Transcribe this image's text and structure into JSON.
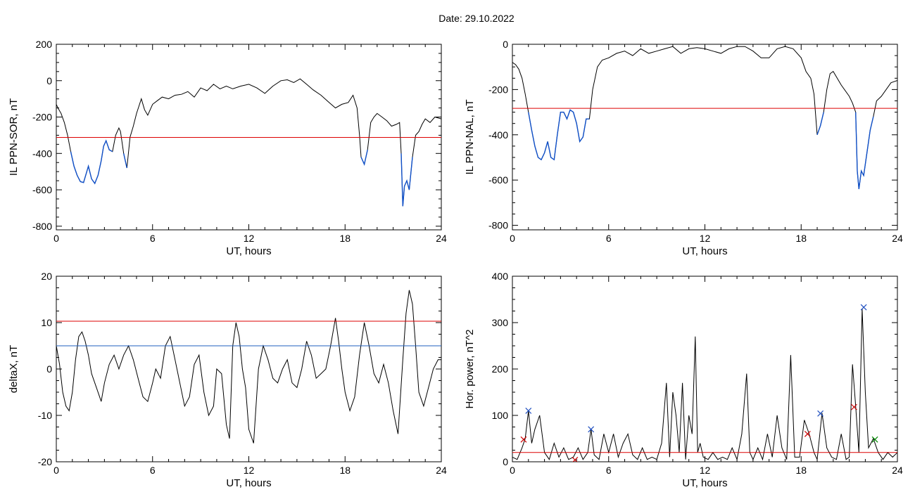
{
  "header": {
    "date_text": "Date:  29.10.2022"
  },
  "colors": {
    "trace": "#000000",
    "threshold_red": "#dd0000",
    "threshold_blue": "#1f5fbf",
    "dip_blue": "#1050c8",
    "marker_red": "#cc0000",
    "marker_blue": "#1f4fbf",
    "marker_green": "#008800"
  },
  "chart_data": [
    {
      "id": "ppn-sor",
      "type": "line",
      "title": "",
      "xlabel": "UT, hours",
      "ylabel": "IL PPN-SOR, nT",
      "xlim": [
        0,
        24
      ],
      "ylim": [
        -820,
        200
      ],
      "xticks": [
        0,
        6,
        12,
        18,
        24
      ],
      "yticks": [
        -800,
        -600,
        -400,
        -200,
        0,
        200
      ],
      "threshold": {
        "y": -312,
        "color": "red"
      },
      "highlight_below_threshold": true,
      "series": [
        {
          "x": [
            0,
            0.1,
            0.3,
            0.5,
            0.7,
            0.9,
            1.1,
            1.3,
            1.5,
            1.7,
            1.9,
            2.0,
            2.2,
            2.4,
            2.6,
            2.8,
            2.95,
            3.1,
            3.3,
            3.5,
            3.7,
            3.9,
            4.0,
            4.2,
            4.4,
            4.6,
            4.8,
            5.0,
            5.3,
            5.5,
            5.7,
            6.0,
            6.3,
            6.6,
            7.0,
            7.4,
            7.8,
            8.2,
            8.6,
            9.0,
            9.4,
            9.8,
            10.2,
            10.6,
            11.0,
            11.5,
            12.0,
            12.5,
            13.0,
            13.5,
            14.0,
            14.4,
            14.8,
            15.2,
            15.6,
            16.0,
            16.5,
            17.0,
            17.4,
            17.8,
            18.2,
            18.5,
            18.75,
            18.9,
            19.0,
            19.2,
            19.4,
            19.6,
            19.8,
            20.0,
            20.3,
            20.6,
            20.9,
            21.2,
            21.4,
            21.5,
            21.6,
            21.7,
            21.85,
            22.0,
            22.2,
            22.4,
            22.6,
            22.8,
            23.0,
            23.3,
            23.6,
            24.0
          ],
          "y": [
            -130,
            -150,
            -180,
            -230,
            -300,
            -390,
            -470,
            -520,
            -555,
            -560,
            -500,
            -470,
            -540,
            -565,
            -520,
            -440,
            -360,
            -330,
            -380,
            -390,
            -300,
            -260,
            -280,
            -400,
            -480,
            -310,
            -250,
            -180,
            -100,
            -160,
            -190,
            -130,
            -110,
            -90,
            -100,
            -80,
            -75,
            -60,
            -90,
            -40,
            -55,
            -20,
            -45,
            -30,
            -45,
            -30,
            -20,
            -40,
            -70,
            -30,
            0,
            5,
            -10,
            10,
            -20,
            -50,
            -80,
            -120,
            -150,
            -130,
            -120,
            -80,
            -150,
            -300,
            -420,
            -460,
            -380,
            -230,
            -200,
            -180,
            -200,
            -220,
            -250,
            -240,
            -230,
            -400,
            -690,
            -580,
            -550,
            -600,
            -420,
            -300,
            -280,
            -240,
            -210,
            -230,
            -200,
            -210
          ]
        }
      ]
    },
    {
      "id": "ppn-nal",
      "type": "line",
      "title": "",
      "xlabel": "UT, hours",
      "ylabel": "IL PPN-NAL, nT",
      "xlim": [
        0,
        24
      ],
      "ylim": [
        -820,
        0
      ],
      "xticks": [
        0,
        6,
        12,
        18,
        24
      ],
      "yticks": [
        -800,
        -600,
        -400,
        -200,
        0
      ],
      "threshold": {
        "y": -283,
        "color": "red"
      },
      "highlight_below_threshold": true,
      "series": [
        {
          "x": [
            0,
            0.2,
            0.4,
            0.6,
            0.8,
            1.0,
            1.2,
            1.4,
            1.6,
            1.8,
            2.0,
            2.2,
            2.4,
            2.6,
            2.8,
            3.0,
            3.2,
            3.4,
            3.6,
            3.8,
            4.0,
            4.2,
            4.4,
            4.6,
            4.8,
            5.0,
            5.3,
            5.6,
            6.0,
            6.5,
            7.0,
            7.5,
            8.0,
            8.5,
            9.0,
            9.5,
            10.0,
            10.5,
            11.0,
            11.5,
            12.0,
            12.5,
            13.0,
            13.5,
            14.0,
            14.5,
            15.0,
            15.5,
            16.0,
            16.5,
            17.0,
            17.5,
            18.0,
            18.3,
            18.6,
            18.8,
            19.0,
            19.2,
            19.4,
            19.6,
            19.8,
            20.0,
            20.5,
            21.0,
            21.2,
            21.4,
            21.5,
            21.6,
            21.75,
            21.9,
            22.1,
            22.3,
            22.5,
            22.7,
            23.0,
            23.3,
            23.6,
            24.0
          ],
          "y": [
            -80,
            -90,
            -110,
            -150,
            -220,
            -300,
            -380,
            -450,
            -500,
            -510,
            -480,
            -430,
            -500,
            -510,
            -400,
            -300,
            -300,
            -330,
            -290,
            -300,
            -350,
            -430,
            -410,
            -330,
            -330,
            -200,
            -100,
            -70,
            -60,
            -40,
            -30,
            -50,
            -20,
            -40,
            -30,
            -20,
            -10,
            -40,
            -20,
            -15,
            -20,
            -30,
            -40,
            -20,
            -10,
            -10,
            -30,
            -60,
            -60,
            -20,
            -10,
            -20,
            -60,
            -120,
            -150,
            -220,
            -400,
            -360,
            -300,
            -200,
            -130,
            -120,
            -180,
            -230,
            -260,
            -300,
            -560,
            -640,
            -560,
            -580,
            -480,
            -380,
            -320,
            -250,
            -230,
            -200,
            -170,
            -160
          ]
        }
      ]
    },
    {
      "id": "deltax",
      "type": "line",
      "title": "",
      "xlabel": "UT, hours",
      "ylabel": "deltaX, nT",
      "xlim": [
        0,
        24
      ],
      "ylim": [
        -20,
        20
      ],
      "xticks": [
        0,
        6,
        12,
        18,
        24
      ],
      "yticks": [
        -20,
        -10,
        0,
        10,
        20
      ],
      "thresholds": [
        {
          "y": 10.3,
          "color": "red"
        },
        {
          "y": 5.0,
          "color": "blue"
        }
      ],
      "series": [
        {
          "x": [
            0,
            0.2,
            0.4,
            0.6,
            0.8,
            1.0,
            1.2,
            1.4,
            1.6,
            1.8,
            2.0,
            2.2,
            2.5,
            2.8,
            3.0,
            3.3,
            3.6,
            3.9,
            4.2,
            4.5,
            4.8,
            5.1,
            5.4,
            5.7,
            6.0,
            6.2,
            6.5,
            6.8,
            7.1,
            7.4,
            7.7,
            8.0,
            8.3,
            8.6,
            8.9,
            9.2,
            9.5,
            9.8,
            10.0,
            10.3,
            10.6,
            10.8,
            11.0,
            11.2,
            11.4,
            11.6,
            11.8,
            12.0,
            12.3,
            12.6,
            12.9,
            13.2,
            13.5,
            13.8,
            14.1,
            14.4,
            14.7,
            15.0,
            15.3,
            15.6,
            15.9,
            16.2,
            16.5,
            16.8,
            17.1,
            17.4,
            17.6,
            17.8,
            18.0,
            18.3,
            18.6,
            18.9,
            19.2,
            19.5,
            19.8,
            20.1,
            20.4,
            20.7,
            21.0,
            21.3,
            21.6,
            21.8,
            22.0,
            22.2,
            22.4,
            22.6,
            22.9,
            23.2,
            23.5,
            23.8,
            24.0
          ],
          "y": [
            5,
            1,
            -5,
            -8,
            -9,
            -5,
            2,
            7,
            8,
            6,
            3,
            -1,
            -4,
            -7,
            -3,
            1,
            3,
            0,
            3,
            5,
            2,
            -2,
            -6,
            -7,
            -3,
            0,
            -2,
            5,
            7,
            2,
            -3,
            -8,
            -6,
            1,
            3,
            -5,
            -10,
            -8,
            0,
            -1,
            -12,
            -15,
            5,
            10,
            7,
            0,
            -4,
            -13,
            -16,
            0,
            5,
            2,
            -2,
            -3,
            0,
            2,
            -3,
            -4,
            0,
            6,
            3,
            -2,
            -1,
            0,
            5,
            11,
            6,
            0,
            -5,
            -9,
            -6,
            3,
            10,
            5,
            -1,
            -3,
            1,
            -3,
            -9,
            -14,
            2,
            12,
            17,
            14,
            5,
            -5,
            -8,
            -4,
            0,
            2,
            2
          ]
        }
      ]
    },
    {
      "id": "hor-power",
      "type": "line",
      "title": "",
      "xlabel": "UT, hours",
      "ylabel": "Hor. power, nT^2",
      "xlim": [
        0,
        24
      ],
      "ylim": [
        0,
        400
      ],
      "xticks": [
        0,
        6,
        12,
        18,
        24
      ],
      "yticks": [
        0,
        100,
        200,
        300,
        400
      ],
      "threshold": {
        "y": 20,
        "color": "red"
      },
      "series": [
        {
          "x": [
            0,
            0.3,
            0.6,
            0.8,
            1.0,
            1.2,
            1.4,
            1.7,
            2.0,
            2.3,
            2.6,
            2.9,
            3.2,
            3.5,
            3.8,
            4.1,
            4.4,
            4.7,
            4.9,
            5.1,
            5.4,
            5.7,
            6.0,
            6.3,
            6.6,
            6.9,
            7.2,
            7.5,
            7.8,
            8.1,
            8.4,
            8.7,
            9.0,
            9.3,
            9.6,
            9.8,
            10.0,
            10.2,
            10.4,
            10.6,
            10.8,
            11.0,
            11.2,
            11.4,
            11.55,
            11.7,
            11.9,
            12.2,
            12.5,
            12.8,
            13.1,
            13.4,
            13.7,
            14.0,
            14.3,
            14.6,
            14.8,
            15.0,
            15.3,
            15.6,
            15.9,
            16.2,
            16.5,
            16.8,
            17.1,
            17.35,
            17.6,
            17.9,
            18.2,
            18.5,
            18.8,
            19.0,
            19.3,
            19.6,
            19.9,
            20.2,
            20.5,
            20.8,
            21.0,
            21.2,
            21.4,
            21.6,
            21.8,
            22.0,
            22.2,
            22.5,
            22.8,
            23.1,
            23.4,
            23.7,
            24.0
          ],
          "y": [
            10,
            5,
            30,
            50,
            110,
            40,
            70,
            100,
            20,
            5,
            40,
            10,
            30,
            5,
            10,
            30,
            5,
            20,
            70,
            15,
            5,
            60,
            20,
            60,
            10,
            40,
            60,
            15,
            5,
            30,
            5,
            10,
            5,
            40,
            170,
            10,
            150,
            100,
            20,
            170,
            5,
            100,
            60,
            270,
            20,
            40,
            10,
            5,
            20,
            5,
            10,
            5,
            30,
            5,
            60,
            190,
            20,
            5,
            30,
            5,
            60,
            10,
            100,
            30,
            5,
            230,
            10,
            10,
            90,
            60,
            20,
            5,
            105,
            30,
            10,
            5,
            60,
            5,
            10,
            210,
            120,
            20,
            330,
            150,
            30,
            50,
            20,
            5,
            20,
            10,
            20
          ]
        }
      ],
      "markers": [
        {
          "x": 0.7,
          "y": 48,
          "color": "red"
        },
        {
          "x": 1.0,
          "y": 110,
          "color": "blue"
        },
        {
          "x": 3.9,
          "y": 4,
          "color": "red"
        },
        {
          "x": 4.9,
          "y": 70,
          "color": "blue"
        },
        {
          "x": 18.4,
          "y": 60,
          "color": "red"
        },
        {
          "x": 19.2,
          "y": 104,
          "color": "blue"
        },
        {
          "x": 21.3,
          "y": 118,
          "color": "red"
        },
        {
          "x": 21.9,
          "y": 333,
          "color": "blue"
        },
        {
          "x": 22.6,
          "y": 48,
          "color": "green"
        }
      ]
    }
  ]
}
